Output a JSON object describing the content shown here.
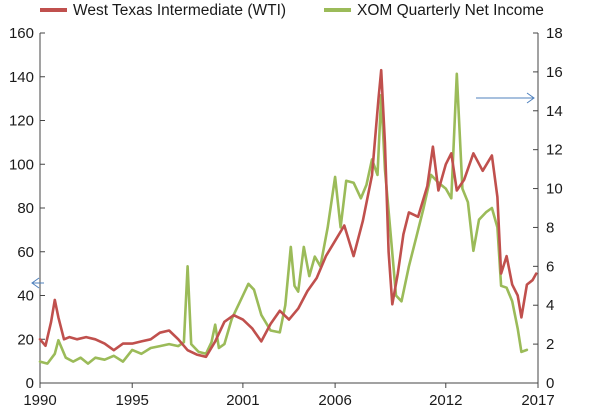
{
  "chart_data": {
    "type": "line",
    "title": "",
    "xlabel": "",
    "ylabel_left": "",
    "ylabel_right": "",
    "x_ticks": [
      "1990",
      "1995",
      "2001",
      "2006",
      "2012",
      "2017"
    ],
    "xlim": [
      1990,
      2017
    ],
    "y_left": {
      "lim": [
        0,
        160
      ],
      "ticks": [
        "0",
        "20",
        "40",
        "60",
        "80",
        "100",
        "120",
        "140",
        "160"
      ]
    },
    "y_right": {
      "lim": [
        0,
        18
      ],
      "ticks": [
        "0",
        "2",
        "4",
        "6",
        "8",
        "10",
        "12",
        "14",
        "16",
        "18"
      ]
    },
    "legend_position": "top",
    "grid": false,
    "annotations": [
      {
        "type": "arrow",
        "direction": "left",
        "meaning": "WTI plotted against left axis"
      },
      {
        "type": "arrow",
        "direction": "right",
        "meaning": "XOM net income plotted against right axis"
      }
    ],
    "series": [
      {
        "name": "West Texas Intermediate (WTI)",
        "axis": "left",
        "color": "#c0504d",
        "points": [
          [
            1990.0,
            20
          ],
          [
            1990.3,
            17
          ],
          [
            1990.6,
            28
          ],
          [
            1990.8,
            38
          ],
          [
            1991.0,
            30
          ],
          [
            1991.3,
            20
          ],
          [
            1991.6,
            21
          ],
          [
            1992.0,
            20
          ],
          [
            1992.5,
            21
          ],
          [
            1993.0,
            20
          ],
          [
            1993.5,
            18
          ],
          [
            1994.0,
            15
          ],
          [
            1994.5,
            18
          ],
          [
            1995.0,
            18
          ],
          [
            1995.5,
            19
          ],
          [
            1996.0,
            20
          ],
          [
            1996.5,
            23
          ],
          [
            1997.0,
            24
          ],
          [
            1997.5,
            20
          ],
          [
            1998.0,
            15
          ],
          [
            1998.5,
            13
          ],
          [
            1999.0,
            12
          ],
          [
            1999.5,
            19
          ],
          [
            2000.0,
            28
          ],
          [
            2000.5,
            31
          ],
          [
            2001.0,
            29
          ],
          [
            2001.5,
            25
          ],
          [
            2002.0,
            19
          ],
          [
            2002.5,
            27
          ],
          [
            2003.0,
            33
          ],
          [
            2003.5,
            29
          ],
          [
            2004.0,
            34
          ],
          [
            2004.5,
            42
          ],
          [
            2005.0,
            48
          ],
          [
            2005.5,
            58
          ],
          [
            2006.0,
            65
          ],
          [
            2006.5,
            72
          ],
          [
            2007.0,
            58
          ],
          [
            2007.5,
            74
          ],
          [
            2008.0,
            95
          ],
          [
            2008.35,
            130
          ],
          [
            2008.5,
            143
          ],
          [
            2008.7,
            110
          ],
          [
            2008.9,
            60
          ],
          [
            2009.1,
            36
          ],
          [
            2009.4,
            50
          ],
          [
            2009.7,
            68
          ],
          [
            2010.0,
            78
          ],
          [
            2010.5,
            76
          ],
          [
            2011.0,
            90
          ],
          [
            2011.3,
            108
          ],
          [
            2011.6,
            88
          ],
          [
            2012.0,
            100
          ],
          [
            2012.3,
            105
          ],
          [
            2012.6,
            88
          ],
          [
            2013.0,
            93
          ],
          [
            2013.5,
            105
          ],
          [
            2014.0,
            97
          ],
          [
            2014.5,
            104
          ],
          [
            2014.8,
            85
          ],
          [
            2015.0,
            50
          ],
          [
            2015.3,
            58
          ],
          [
            2015.6,
            45
          ],
          [
            2015.9,
            40
          ],
          [
            2016.1,
            30
          ],
          [
            2016.4,
            45
          ],
          [
            2016.7,
            47
          ],
          [
            2016.9,
            50
          ]
        ]
      },
      {
        "name": "XOM Quarterly Net Income",
        "axis": "right",
        "color": "#9bbb59",
        "points": [
          [
            1990.0,
            1.1
          ],
          [
            1990.4,
            1.0
          ],
          [
            1990.8,
            1.5
          ],
          [
            1991.0,
            2.2
          ],
          [
            1991.4,
            1.3
          ],
          [
            1991.8,
            1.1
          ],
          [
            1992.2,
            1.3
          ],
          [
            1992.6,
            1.0
          ],
          [
            1993.0,
            1.3
          ],
          [
            1993.5,
            1.2
          ],
          [
            1994.0,
            1.4
          ],
          [
            1994.5,
            1.1
          ],
          [
            1995.0,
            1.7
          ],
          [
            1995.5,
            1.5
          ],
          [
            1996.0,
            1.8
          ],
          [
            1996.5,
            1.9
          ],
          [
            1997.0,
            2.0
          ],
          [
            1997.5,
            1.9
          ],
          [
            1997.8,
            2.1
          ],
          [
            1998.0,
            6.0
          ],
          [
            1998.2,
            2.0
          ],
          [
            1998.6,
            1.6
          ],
          [
            1999.0,
            1.5
          ],
          [
            1999.3,
            2.1
          ],
          [
            1999.5,
            3.0
          ],
          [
            1999.7,
            1.8
          ],
          [
            2000.0,
            2.0
          ],
          [
            2000.4,
            3.3
          ],
          [
            2000.8,
            4.1
          ],
          [
            2001.0,
            4.5
          ],
          [
            2001.3,
            5.1
          ],
          [
            2001.6,
            4.8
          ],
          [
            2002.0,
            3.5
          ],
          [
            2002.5,
            2.7
          ],
          [
            2003.0,
            2.6
          ],
          [
            2003.3,
            4.0
          ],
          [
            2003.6,
            7.0
          ],
          [
            2003.8,
            5.0
          ],
          [
            2004.0,
            4.7
          ],
          [
            2004.3,
            7.0
          ],
          [
            2004.6,
            5.5
          ],
          [
            2004.9,
            6.5
          ],
          [
            2005.2,
            6.0
          ],
          [
            2005.6,
            8.0
          ],
          [
            2006.0,
            10.6
          ],
          [
            2006.3,
            8.0
          ],
          [
            2006.6,
            10.4
          ],
          [
            2007.0,
            10.3
          ],
          [
            2007.4,
            9.5
          ],
          [
            2007.7,
            10.2
          ],
          [
            2008.0,
            11.5
          ],
          [
            2008.3,
            10.7
          ],
          [
            2008.5,
            14.8
          ],
          [
            2008.7,
            11.0
          ],
          [
            2009.0,
            7.8
          ],
          [
            2009.3,
            4.5
          ],
          [
            2009.6,
            4.2
          ],
          [
            2010.0,
            6.0
          ],
          [
            2010.4,
            7.5
          ],
          [
            2010.8,
            9.0
          ],
          [
            2011.2,
            10.7
          ],
          [
            2011.6,
            10.3
          ],
          [
            2012.0,
            10.0
          ],
          [
            2012.3,
            9.5
          ],
          [
            2012.6,
            15.9
          ],
          [
            2012.9,
            10.0
          ],
          [
            2013.2,
            9.3
          ],
          [
            2013.5,
            6.8
          ],
          [
            2013.8,
            8.4
          ],
          [
            2014.2,
            8.8
          ],
          [
            2014.5,
            9.0
          ],
          [
            2014.8,
            8.0
          ],
          [
            2015.0,
            5.0
          ],
          [
            2015.3,
            4.9
          ],
          [
            2015.6,
            4.2
          ],
          [
            2015.9,
            2.8
          ],
          [
            2016.1,
            1.6
          ],
          [
            2016.4,
            1.7
          ]
        ]
      }
    ]
  }
}
